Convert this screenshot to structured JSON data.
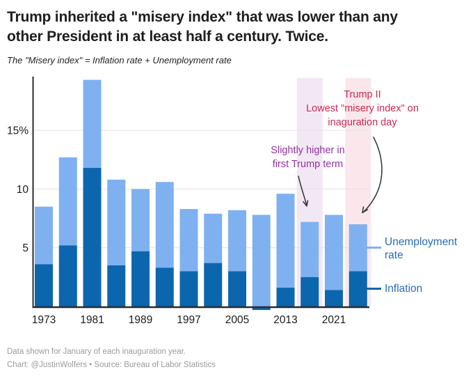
{
  "header": {
    "title": "Trump inherited a \"misery index\" that was lower than any\nother President in at least half a century. Twice.",
    "subtitle": "The \"Misery index\" = Inflation rate + Unemployment rate"
  },
  "chart_data": {
    "type": "bar",
    "stacked": true,
    "title": "Trump inherited a \"misery index\" that was lower than any other President in at least half a century. Twice.",
    "subtitle": "The \"Misery index\" = Inflation rate + Unemployment rate",
    "categories": [
      1973,
      1977,
      1981,
      1985,
      1989,
      1993,
      1997,
      2001,
      2005,
      2009,
      2013,
      2017,
      2021,
      2025
    ],
    "series": [
      {
        "name": "Inflation",
        "color": "#0B66AE",
        "values": [
          3.6,
          5.2,
          11.8,
          3.5,
          4.7,
          3.3,
          3.0,
          3.7,
          3.0,
          -0.3,
          1.6,
          2.5,
          1.4,
          3.0
        ]
      },
      {
        "name": "Unemployment rate",
        "color": "#7FB1F1",
        "values": [
          4.9,
          7.5,
          7.5,
          7.3,
          5.3,
          7.3,
          5.3,
          4.2,
          5.2,
          7.8,
          8.0,
          4.7,
          6.4,
          4.0
        ]
      }
    ],
    "y_ticks": [
      {
        "value": 5,
        "label": "5"
      },
      {
        "value": 10,
        "label": "10"
      },
      {
        "value": 15,
        "label": "15%"
      }
    ],
    "x_tick_labels": [
      "1973",
      "1981",
      "1989",
      "1997",
      "2005",
      "2013",
      "2021"
    ],
    "ylim": [
      0,
      19.45
    ],
    "grid": true,
    "legend_position": "right",
    "highlight_bands": [
      {
        "year": 2017,
        "color": "#F2E8F4"
      },
      {
        "year": 2025,
        "color": "#FBE7EB"
      }
    ]
  },
  "annotations": {
    "trump1": {
      "text": "Slightly higher in\nfirst Trump term",
      "color": "#9331A3"
    },
    "trump2": {
      "text": "Trump II\nLowest \"misery index\" on\ninaguration day",
      "color": "#C9294F"
    }
  },
  "legend": {
    "unemployment": "Unemployment rate",
    "inflation": "Inflation"
  },
  "footer": {
    "note": "Data shown for January of each inauguration year.",
    "credit": "Chart: @JustinWolfers • Source: Bureau of Labor Statistics"
  }
}
